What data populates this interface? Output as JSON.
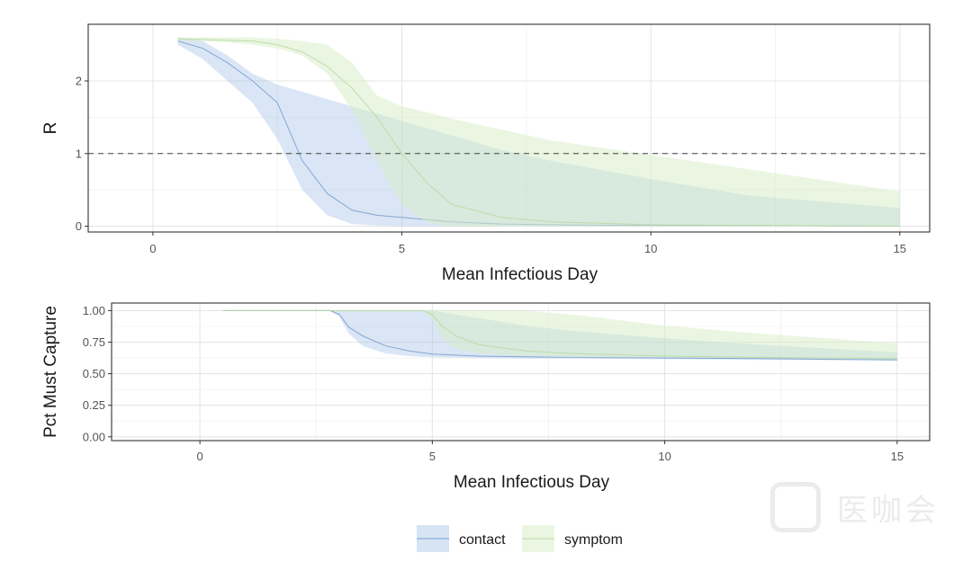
{
  "chart_data": [
    {
      "type": "area",
      "ylabel": "R",
      "xlabel": "Mean Infectious Day",
      "xlim": [
        -1.3,
        15.6
      ],
      "ylim": [
        -0.08,
        2.78
      ],
      "xticks": [
        0,
        5,
        10,
        15
      ],
      "yticks": [
        0,
        1,
        2
      ],
      "reference_line": {
        "y": 1,
        "style": "dashed"
      },
      "grid": true,
      "series": [
        {
          "name": "contact",
          "color": "#a6c4e6",
          "x": [
            0.5,
            1.0,
            1.5,
            2.0,
            2.5,
            3.0,
            3.5,
            4.0,
            4.5,
            5.0,
            6.0,
            7.0,
            8.0,
            10.0,
            12.0,
            15.0
          ],
          "mean": [
            2.55,
            2.45,
            2.25,
            2.0,
            1.7,
            0.9,
            0.45,
            0.22,
            0.15,
            0.12,
            0.06,
            0.03,
            0.02,
            0.01,
            0.01,
            0.0
          ],
          "lower": [
            2.5,
            2.3,
            2.0,
            1.7,
            1.2,
            0.5,
            0.15,
            0.03,
            0.01,
            0.0,
            0.0,
            0.0,
            0.0,
            0.0,
            0.0,
            0.0
          ],
          "upper": [
            2.6,
            2.55,
            2.35,
            2.1,
            1.95,
            1.85,
            1.75,
            1.65,
            1.55,
            1.45,
            1.25,
            1.05,
            0.9,
            0.65,
            0.42,
            0.25
          ]
        },
        {
          "name": "symptom",
          "color": "#d6edc5",
          "x": [
            0.5,
            1.0,
            1.5,
            2.0,
            2.5,
            3.0,
            3.5,
            4.0,
            4.5,
            5.0,
            5.5,
            6.0,
            7.0,
            8.0,
            10.0,
            12.0,
            15.0
          ],
          "mean": [
            2.58,
            2.57,
            2.56,
            2.55,
            2.5,
            2.4,
            2.2,
            1.9,
            1.5,
            1.0,
            0.6,
            0.3,
            0.12,
            0.06,
            0.02,
            0.01,
            0.0
          ],
          "lower": [
            2.55,
            2.55,
            2.53,
            2.5,
            2.45,
            2.35,
            2.1,
            1.6,
            0.9,
            0.3,
            0.05,
            0.0,
            0.0,
            0.0,
            0.0,
            0.0,
            0.0
          ],
          "upper": [
            2.6,
            2.6,
            2.6,
            2.6,
            2.58,
            2.55,
            2.5,
            2.25,
            1.8,
            1.65,
            1.57,
            1.48,
            1.33,
            1.18,
            0.98,
            0.78,
            0.48
          ]
        }
      ]
    },
    {
      "type": "area",
      "ylabel": "Pct Must Capture",
      "xlabel": "Mean Infectious Day",
      "xlim": [
        -1.9,
        15.7
      ],
      "ylim": [
        -0.03,
        1.06
      ],
      "xticks": [
        0,
        5,
        10,
        15
      ],
      "yticks": [
        "0.00",
        "0.25",
        "0.50",
        "0.75",
        "1.00"
      ],
      "grid": true,
      "series": [
        {
          "name": "contact",
          "color": "#a6c4e6",
          "x": [
            0.5,
            1.0,
            2.0,
            2.8,
            3.0,
            3.2,
            3.5,
            4.0,
            4.5,
            5.0,
            6.0,
            7.0,
            8.0,
            10.0,
            12.0,
            15.0
          ],
          "mean": [
            1.0,
            1.0,
            1.0,
            1.0,
            0.97,
            0.87,
            0.8,
            0.72,
            0.68,
            0.655,
            0.64,
            0.635,
            0.63,
            0.625,
            0.62,
            0.61
          ],
          "lower": [
            1.0,
            1.0,
            1.0,
            1.0,
            0.95,
            0.82,
            0.72,
            0.66,
            0.64,
            0.63,
            0.625,
            0.62,
            0.62,
            0.615,
            0.61,
            0.605
          ],
          "upper": [
            1.0,
            1.0,
            1.0,
            1.0,
            1.0,
            1.0,
            1.0,
            1.0,
            1.0,
            1.0,
            0.94,
            0.88,
            0.84,
            0.78,
            0.73,
            0.67
          ]
        },
        {
          "name": "symptom",
          "color": "#d6edc5",
          "x": [
            0.5,
            1.0,
            2.0,
            3.0,
            4.0,
            4.8,
            5.0,
            5.2,
            5.5,
            6.0,
            7.0,
            8.0,
            10.0,
            12.0,
            15.0
          ],
          "mean": [
            1.0,
            1.0,
            1.0,
            1.0,
            1.0,
            1.0,
            0.97,
            0.88,
            0.8,
            0.73,
            0.68,
            0.66,
            0.64,
            0.63,
            0.62
          ],
          "lower": [
            1.0,
            1.0,
            1.0,
            1.0,
            1.0,
            1.0,
            0.93,
            0.78,
            0.7,
            0.66,
            0.64,
            0.63,
            0.63,
            0.625,
            0.615
          ],
          "upper": [
            1.0,
            1.0,
            1.0,
            1.0,
            1.0,
            1.0,
            1.0,
            1.0,
            1.0,
            1.0,
            1.0,
            0.97,
            0.88,
            0.82,
            0.74
          ]
        }
      ]
    }
  ],
  "legend": {
    "position": "bottom",
    "items": [
      {
        "label": "contact",
        "fill": "#a6c4e6",
        "line": "#7a9fd0"
      },
      {
        "label": "symptom",
        "fill": "#d6edc5",
        "line": "#b9d9a3"
      }
    ]
  },
  "watermark": {
    "text": "医咖会"
  }
}
